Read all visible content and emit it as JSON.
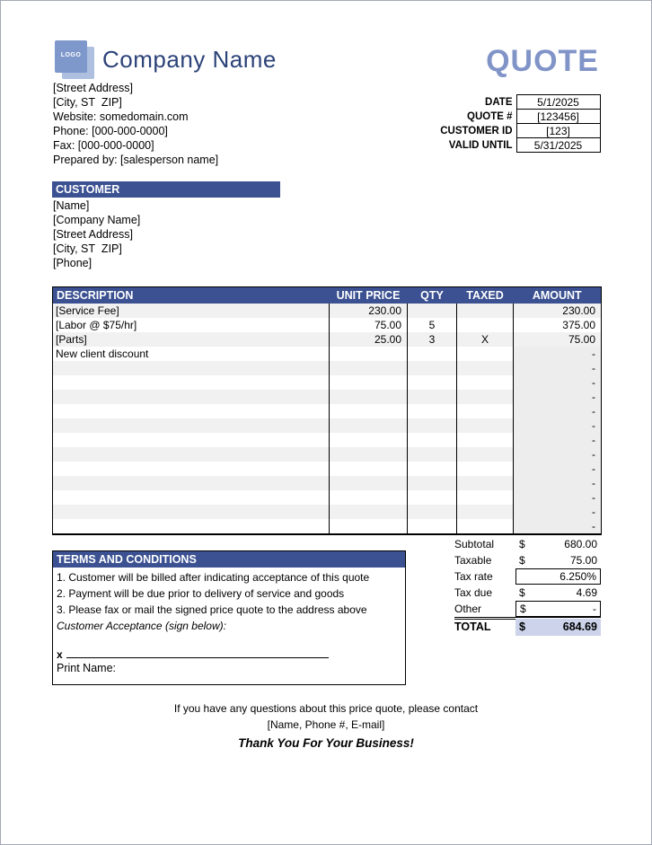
{
  "header": {
    "logo_text": "LOGO",
    "company_name": "Company Name",
    "quote_title": "QUOTE"
  },
  "company_info": {
    "lines": [
      "[Street Address]",
      "[City, ST  ZIP]",
      "Website: somedomain.com",
      "Phone: [000-000-0000]",
      "Fax: [000-000-0000]",
      "Prepared by: [salesperson name]"
    ]
  },
  "quote_meta": {
    "rows": [
      {
        "label": "DATE",
        "value": "5/1/2025"
      },
      {
        "label": "QUOTE #",
        "value": "[123456]"
      },
      {
        "label": "CUSTOMER ID",
        "value": "[123]"
      },
      {
        "label": "VALID UNTIL",
        "value": "5/31/2025"
      }
    ]
  },
  "customer": {
    "title": "CUSTOMER",
    "lines": [
      "[Name]",
      "[Company Name]",
      "[Street Address]",
      "[City, ST  ZIP]",
      "[Phone]"
    ]
  },
  "items_table": {
    "columns": [
      "DESCRIPTION",
      "UNIT PRICE",
      "QTY",
      "TAXED",
      "AMOUNT"
    ],
    "rows": [
      {
        "description": "[Service Fee]",
        "unit_price": "230.00",
        "qty": "",
        "taxed": "",
        "amount": "230.00"
      },
      {
        "description": "[Labor @ $75/hr]",
        "unit_price": "75.00",
        "qty": "5",
        "taxed": "",
        "amount": "375.00"
      },
      {
        "description": "[Parts]",
        "unit_price": "25.00",
        "qty": "3",
        "taxed": "X",
        "amount": "75.00"
      },
      {
        "description": "New client discount",
        "unit_price": "",
        "qty": "",
        "taxed": "",
        "amount": "-"
      },
      {
        "description": "",
        "unit_price": "",
        "qty": "",
        "taxed": "",
        "amount": "-"
      },
      {
        "description": "",
        "unit_price": "",
        "qty": "",
        "taxed": "",
        "amount": "-"
      },
      {
        "description": "",
        "unit_price": "",
        "qty": "",
        "taxed": "",
        "amount": "-"
      },
      {
        "description": "",
        "unit_price": "",
        "qty": "",
        "taxed": "",
        "amount": "-"
      },
      {
        "description": "",
        "unit_price": "",
        "qty": "",
        "taxed": "",
        "amount": "-"
      },
      {
        "description": "",
        "unit_price": "",
        "qty": "",
        "taxed": "",
        "amount": "-"
      },
      {
        "description": "",
        "unit_price": "",
        "qty": "",
        "taxed": "",
        "amount": "-"
      },
      {
        "description": "",
        "unit_price": "",
        "qty": "",
        "taxed": "",
        "amount": "-"
      },
      {
        "description": "",
        "unit_price": "",
        "qty": "",
        "taxed": "",
        "amount": "-"
      },
      {
        "description": "",
        "unit_price": "",
        "qty": "",
        "taxed": "",
        "amount": "-"
      },
      {
        "description": "",
        "unit_price": "",
        "qty": "",
        "taxed": "",
        "amount": "-"
      },
      {
        "description": "",
        "unit_price": "",
        "qty": "",
        "taxed": "",
        "amount": "-"
      }
    ]
  },
  "totals": {
    "rows": [
      {
        "label": "Subtotal",
        "currency": "$",
        "value": "680.00",
        "style": "plain"
      },
      {
        "label": "Taxable",
        "currency": "$",
        "value": "75.00",
        "style": "plain"
      },
      {
        "label": "Tax rate",
        "currency": "",
        "value": "6.250%",
        "style": "boxed"
      },
      {
        "label": "Tax due",
        "currency": "$",
        "value": "4.69",
        "style": "plain"
      },
      {
        "label": "Other",
        "currency": "$",
        "value": "-",
        "style": "boxed"
      },
      {
        "label": "TOTAL",
        "currency": "$",
        "value": "684.69",
        "style": "total"
      }
    ]
  },
  "terms": {
    "title": "TERMS AND CONDITIONS",
    "items": [
      "1. Customer will be billed after indicating acceptance of this quote",
      "2. Payment will be due prior to delivery of service and goods",
      "3. Please fax or mail the signed price quote to the address above"
    ],
    "acceptance_label": "Customer Acceptance (sign below):",
    "signature_prefix": "x",
    "print_name_label": "Print Name:"
  },
  "footer": {
    "line1": "If you have any questions about this price quote, please contact",
    "line2": "[Name, Phone #, E-mail]",
    "line3": "Thank You For Your Business!"
  },
  "colors": {
    "navy_header": "#3b5191",
    "quote_accent": "#8094c8",
    "company_name_text": "#2c4379",
    "logo_blue": "#7e98cc",
    "logo_shadow": "#aebfe0",
    "total_row_bg": "#ccd3ea",
    "row_stripe": "#f1f1f1",
    "amount_column_bg": "#ededed",
    "page_border": "#a3a9b5"
  }
}
